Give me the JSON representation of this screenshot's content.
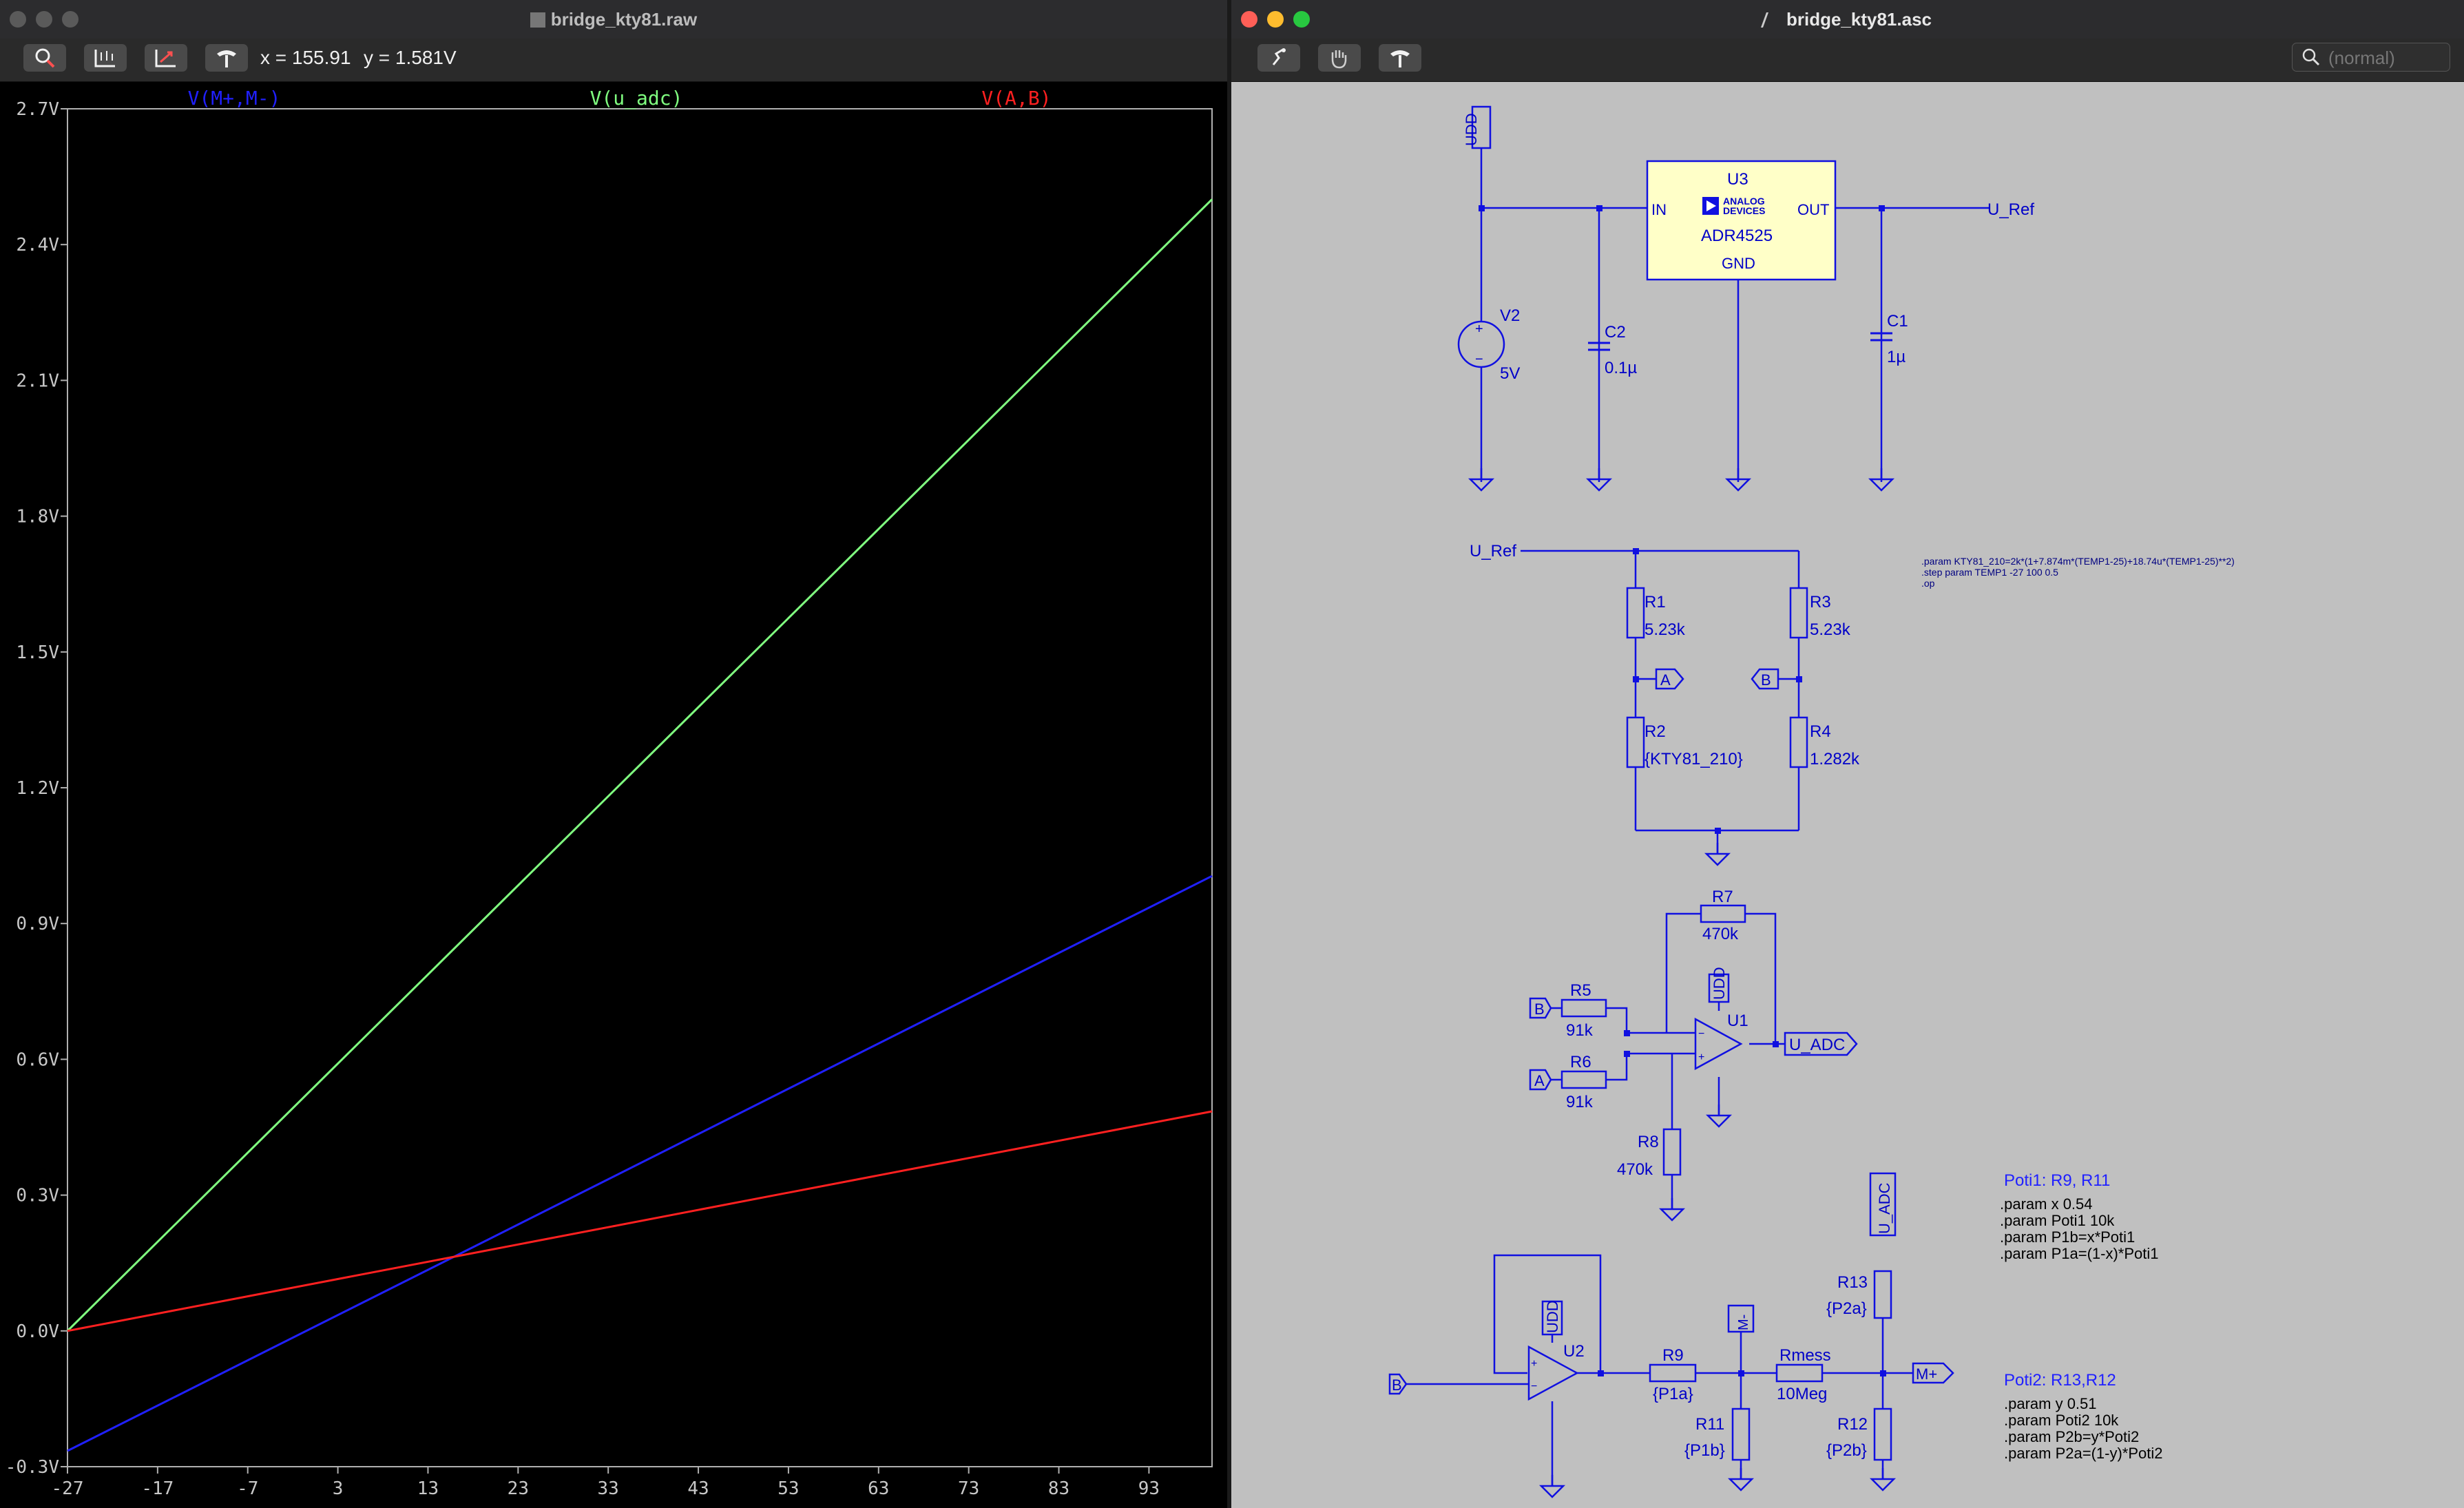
{
  "left_window": {
    "title": "bridge_kty81.raw",
    "readout_x": "x = 155.91",
    "readout_y": "y = 1.581V",
    "toolbar_icons": [
      "zoom-icon",
      "autorange-icon",
      "pan-icon",
      "hammer-icon"
    ]
  },
  "right_window": {
    "title": "bridge_kty81.asc",
    "search_placeholder": "(normal)",
    "toolbar_icons": [
      "run-icon",
      "hand-icon",
      "hammer-icon"
    ]
  },
  "chart_data": {
    "type": "line",
    "title": "",
    "xlabel": "",
    "ylabel": "",
    "xlim": [
      -27,
      100
    ],
    "ylim": [
      -0.3,
      2.7
    ],
    "x_ticks": [
      "-27",
      "-17",
      "-7",
      "3",
      "13",
      "23",
      "33",
      "43",
      "53",
      "63",
      "73",
      "83",
      "93"
    ],
    "x_tick_values": [
      -27,
      -17,
      -7,
      3,
      13,
      23,
      33,
      43,
      53,
      63,
      73,
      83,
      93
    ],
    "y_ticks": [
      "2.7V",
      "2.4V",
      "2.1V",
      "1.8V",
      "1.5V",
      "1.2V",
      "0.9V",
      "0.6V",
      "0.3V",
      "0.0V",
      "-0.3V"
    ],
    "y_tick_values": [
      2.7,
      2.4,
      2.1,
      1.8,
      1.5,
      1.2,
      0.9,
      0.6,
      0.3,
      0.0,
      -0.3
    ],
    "series": [
      {
        "name": "V(M+,M-)",
        "color": "#2020ff",
        "x": [
          -27,
          100
        ],
        "y": [
          -0.265,
          1.005
        ]
      },
      {
        "name": "V(u_adc)",
        "color": "#80ff80",
        "x": [
          -27,
          100
        ],
        "y": [
          0.0,
          2.5
        ]
      },
      {
        "name": "V(A,B)",
        "color": "#ff2020",
        "x": [
          -27,
          100
        ],
        "y": [
          0.0,
          0.485
        ]
      }
    ],
    "grid": false,
    "legend": "top"
  },
  "schematic": {
    "color": "#1010e0",
    "labels": {
      "udd": "UDD",
      "u3_name": "U3",
      "u3_in": "IN",
      "u3_out": "OUT",
      "u3_gnd": "GND",
      "u3_part": "ADR4525",
      "adi_line1": "ANALOG",
      "adi_line2": "DEVICES",
      "u_ref": "U_Ref",
      "v2_name": "V2",
      "v2_val": "5V",
      "c2_name": "C2",
      "c2_val": "0.1µ",
      "c1_name": "C1",
      "c1_val": "1µ",
      "r1_name": "R1",
      "r1_val": "5.23k",
      "r3_name": "R3",
      "r3_val": "5.23k",
      "r2_name": "R2",
      "r2_val": "{KTY81_210}",
      "r4_name": "R4",
      "r4_val": "1.282k",
      "net_a": "A",
      "net_b": "B",
      "r7_name": "R7",
      "r7_val": "470k",
      "r5_name": "R5",
      "r5_val": "91k",
      "r6_name": "R6",
      "r6_val": "91k",
      "r8_name": "R8",
      "r8_val": "470k",
      "u1_name": "U1",
      "u_adc_cap": "U_ADC",
      "u_adc": "U_ADC",
      "u2_name": "U2",
      "r9_name": "R9",
      "r9_val": "{P1a}",
      "r11_name": "R11",
      "r11_val": "{P1b}",
      "rmess_name": "Rmess",
      "rmess_val": "10Meg",
      "r13_name": "R13",
      "r13_val": "{P2a}",
      "r12_name": "R12",
      "r12_val": "{P2b}",
      "m_minus": "M-",
      "m_plus": "M+",
      "plus": "+",
      "minus": "−"
    },
    "directives_top": [
      ".param KTY81_210=2k*(1+7.874m*(TEMP1-25)+18.74u*(TEMP1-25)**2)",
      ".step param TEMP1 -27 100 0.5",
      ".op"
    ],
    "poti1_title": "Poti1: R9, R11",
    "poti1_lines": [
      ".param x 0.54",
      ".param Poti1 10k",
      ".param P1b=x*Poti1",
      ".param P1a=(1-x)*Poti1"
    ],
    "poti2_title": "Poti2: R13,R12",
    "poti2_lines": [
      ".param y 0.51",
      ".param Poti2 10k",
      ".param P2b=y*Poti2",
      ".param P2a=(1-y)*Poti2"
    ]
  }
}
